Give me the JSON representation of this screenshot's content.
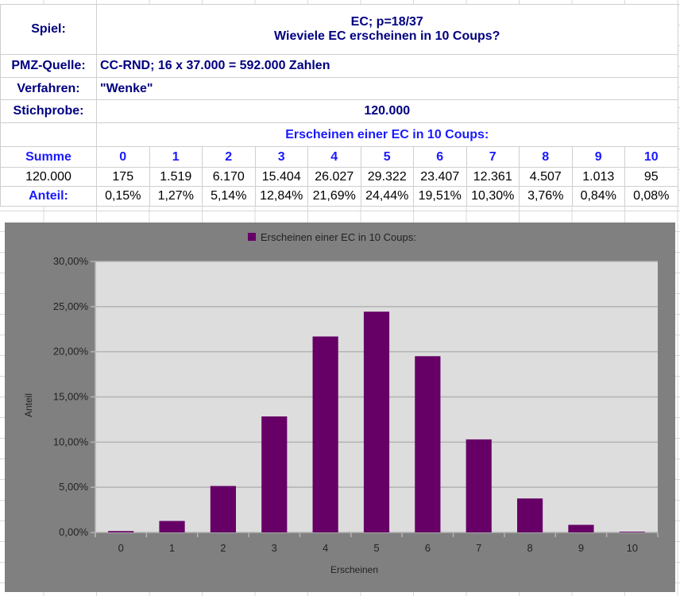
{
  "sheet": {
    "spiel_label": "Spiel:",
    "spiel_line1": "EC; p=18/37",
    "spiel_line2": "Wieviele EC erscheinen in 10 Coups?",
    "pmz_label": "PMZ-Quelle:",
    "pmz_value": "CC-RND; 16 x 37.000 = 592.000 Zahlen",
    "verfahren_label": "Verfahren:",
    "verfahren_value": "\"Wenke\"",
    "stichprobe_label": "Stichprobe:",
    "stichprobe_value": "120.000",
    "section_title": "Erscheinen einer EC in 10 Coups:",
    "summe_label": "Summe",
    "columns": [
      "0",
      "1",
      "2",
      "3",
      "4",
      "5",
      "6",
      "7",
      "8",
      "9",
      "10"
    ],
    "summe_value": "120.000",
    "counts": [
      "175",
      "1.519",
      "6.170",
      "15.404",
      "26.027",
      "29.322",
      "23.407",
      "12.361",
      "4.507",
      "1.013",
      "95"
    ],
    "anteil_label": "Anteil:",
    "anteil": [
      "0,15%",
      "1,27%",
      "5,14%",
      "12,84%",
      "21,69%",
      "24,44%",
      "19,51%",
      "10,30%",
      "3,76%",
      "0,84%",
      "0,08%"
    ]
  },
  "chart_data": {
    "type": "bar",
    "legend": "Erscheinen einer EC in 10 Coups:",
    "legend_position": "top",
    "categories": [
      "0",
      "1",
      "2",
      "3",
      "4",
      "5",
      "6",
      "7",
      "8",
      "9",
      "10"
    ],
    "values": [
      0.15,
      1.27,
      5.14,
      12.84,
      21.69,
      24.44,
      19.51,
      10.3,
      3.76,
      0.84,
      0.08
    ],
    "xlabel": "Erscheinen",
    "ylabel": "Anteil",
    "ylim": [
      0,
      30
    ],
    "yticks": [
      "0,00%",
      "5,00%",
      "10,00%",
      "15,00%",
      "20,00%",
      "25,00%",
      "30,00%"
    ],
    "grid": true,
    "bar_color": "#660066"
  }
}
